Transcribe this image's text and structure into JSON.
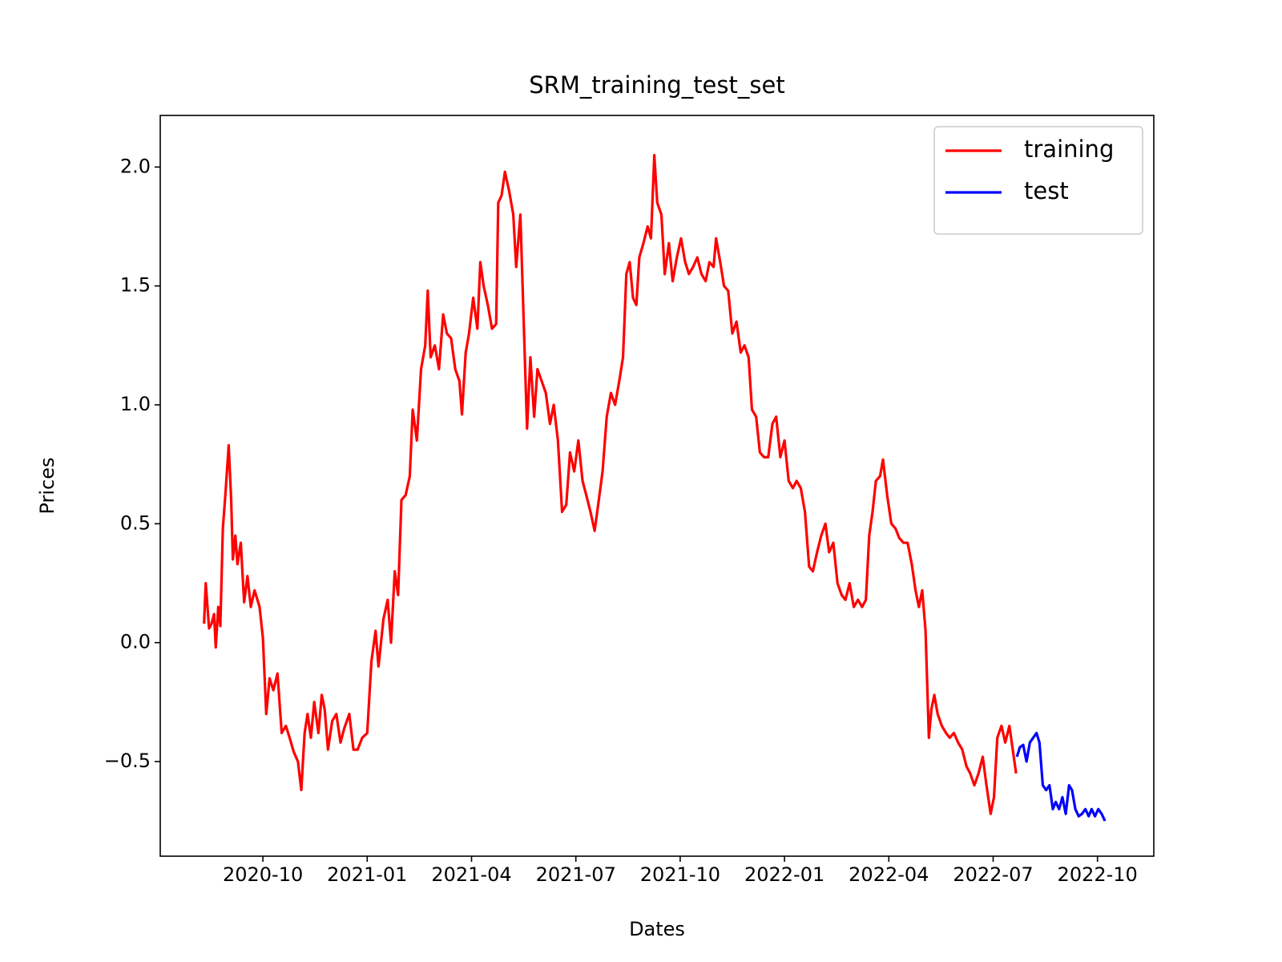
{
  "chart_data": {
    "type": "line",
    "title": "SRM_training_test_set",
    "x_label": "Dates",
    "y_label": "Prices",
    "xlim": [
      2020.504,
      2022.885
    ],
    "xticks": [
      {
        "value": 2020.75,
        "label": "2020-10"
      },
      {
        "value": 2021.0,
        "label": "2021-01"
      },
      {
        "value": 2021.25,
        "label": "2021-04"
      },
      {
        "value": 2021.5,
        "label": "2021-07"
      },
      {
        "value": 2021.75,
        "label": "2021-10"
      },
      {
        "value": 2022.0,
        "label": "2022-01"
      },
      {
        "value": 2022.25,
        "label": "2022-04"
      },
      {
        "value": 2022.5,
        "label": "2022-07"
      },
      {
        "value": 2022.75,
        "label": "2022-10"
      }
    ],
    "ylim": [
      -0.898,
      2.217
    ],
    "yticks": [
      {
        "value": -0.5,
        "label": "−0.5"
      },
      {
        "value": 0,
        "label": "0.0"
      },
      0.5,
      {
        "value": 1,
        "label": "1.0"
      },
      1.5,
      {
        "value": 2,
        "label": "2.0"
      }
    ],
    "grid": false,
    "legend": "upper right",
    "series": [
      {
        "name": "training",
        "color": "#ff0000",
        "x": [
          2020.609,
          2020.613,
          2020.621,
          2020.627,
          2020.633,
          2020.637,
          2020.643,
          2020.648,
          2020.654,
          2020.66,
          2020.668,
          2020.674,
          2020.678,
          2020.684,
          2020.689,
          2020.697,
          2020.705,
          2020.713,
          2020.721,
          2020.73,
          2020.742,
          2020.75,
          2020.758,
          2020.766,
          2020.775,
          2020.785,
          2020.795,
          2020.805,
          2020.814,
          2020.824,
          2020.834,
          2020.842,
          2020.85,
          2020.857,
          2020.865,
          2020.873,
          2020.883,
          2020.891,
          2020.898,
          2020.906,
          2020.916,
          2020.926,
          2020.936,
          2020.945,
          2020.957,
          2020.967,
          2020.977,
          2020.988,
          2021.0,
          2021.01,
          2021.02,
          2021.027,
          2021.039,
          2021.049,
          2021.057,
          2021.066,
          2021.074,
          2021.082,
          2021.092,
          2021.102,
          2021.109,
          2021.119,
          2021.129,
          2021.139,
          2021.145,
          2021.152,
          2021.162,
          2021.172,
          2021.182,
          2021.191,
          2021.201,
          2021.211,
          2021.221,
          2021.227,
          2021.236,
          2021.244,
          2021.254,
          2021.264,
          2021.271,
          2021.279,
          2021.289,
          2021.299,
          2021.309,
          2021.314,
          2021.322,
          2021.33,
          2021.34,
          2021.35,
          2021.357,
          2021.367,
          2021.375,
          2021.383,
          2021.391,
          2021.4,
          2021.408,
          2021.418,
          2021.428,
          2021.438,
          2021.447,
          2021.457,
          2021.467,
          2021.477,
          2021.486,
          2021.496,
          2021.506,
          2021.516,
          2021.525,
          2021.535,
          2021.545,
          2021.555,
          2021.564,
          2021.574,
          2021.584,
          2021.594,
          2021.604,
          2021.613,
          2021.621,
          2021.629,
          2021.637,
          2021.645,
          2021.652,
          2021.662,
          2021.672,
          2021.68,
          2021.688,
          2021.695,
          2021.705,
          2021.713,
          2021.723,
          2021.732,
          2021.742,
          2021.752,
          2021.762,
          2021.771,
          2021.781,
          2021.791,
          2021.801,
          2021.811,
          2021.82,
          2021.83,
          2021.836,
          2021.846,
          2021.855,
          2021.865,
          2021.875,
          2021.885,
          2021.895,
          2021.904,
          2021.914,
          2021.922,
          2021.932,
          2021.941,
          2021.951,
          2021.961,
          2021.971,
          2021.98,
          2021.99,
          2022.0,
          2022.01,
          2022.02,
          2022.029,
          2022.039,
          2022.049,
          2022.059,
          2022.068,
          2022.078,
          2022.088,
          2022.098,
          2022.107,
          2022.117,
          2022.127,
          2022.137,
          2022.146,
          2022.156,
          2022.166,
          2022.176,
          2022.186,
          2022.195,
          2022.203,
          2022.211,
          2022.219,
          2022.229,
          2022.236,
          2022.246,
          2022.256,
          2022.266,
          2022.275,
          2022.285,
          2022.295,
          2022.305,
          2022.314,
          2022.322,
          2022.33,
          2022.338,
          2022.346,
          2022.352,
          2022.359,
          2022.367,
          2022.377,
          2022.387,
          2022.396,
          2022.406,
          2022.416,
          2022.426,
          2022.436,
          2022.445,
          2022.455,
          2022.465,
          2022.475,
          2022.484,
          2022.494,
          2022.502,
          2022.51,
          2022.52,
          2022.529,
          2022.539,
          2022.547,
          2022.555
        ],
        "values": [
          0.08,
          0.25,
          0.06,
          0.08,
          0.12,
          -0.02,
          0.15,
          0.07,
          0.48,
          0.62,
          0.83,
          0.6,
          0.35,
          0.45,
          0.33,
          0.42,
          0.17,
          0.28,
          0.15,
          0.22,
          0.15,
          0.02,
          -0.3,
          -0.15,
          -0.2,
          -0.13,
          -0.38,
          -0.35,
          -0.4,
          -0.46,
          -0.5,
          -0.62,
          -0.38,
          -0.3,
          -0.4,
          -0.25,
          -0.38,
          -0.22,
          -0.28,
          -0.45,
          -0.33,
          -0.3,
          -0.42,
          -0.36,
          -0.3,
          -0.45,
          -0.45,
          -0.4,
          -0.38,
          -0.08,
          0.05,
          -0.1,
          0.1,
          0.18,
          0.0,
          0.3,
          0.2,
          0.6,
          0.62,
          0.7,
          0.98,
          0.85,
          1.15,
          1.25,
          1.48,
          1.2,
          1.25,
          1.15,
          1.38,
          1.3,
          1.28,
          1.15,
          1.1,
          0.96,
          1.22,
          1.3,
          1.45,
          1.32,
          1.6,
          1.5,
          1.42,
          1.32,
          1.34,
          1.85,
          1.88,
          1.98,
          1.9,
          1.8,
          1.58,
          1.8,
          1.35,
          0.9,
          1.2,
          0.95,
          1.15,
          1.1,
          1.05,
          0.92,
          1.0,
          0.85,
          0.55,
          0.58,
          0.8,
          0.72,
          0.85,
          0.68,
          0.62,
          0.55,
          0.47,
          0.6,
          0.72,
          0.95,
          1.05,
          1.0,
          1.1,
          1.2,
          1.55,
          1.6,
          1.45,
          1.42,
          1.62,
          1.68,
          1.75,
          1.7,
          2.05,
          1.85,
          1.8,
          1.55,
          1.68,
          1.52,
          1.62,
          1.7,
          1.6,
          1.55,
          1.58,
          1.62,
          1.55,
          1.52,
          1.6,
          1.58,
          1.7,
          1.6,
          1.5,
          1.48,
          1.3,
          1.35,
          1.22,
          1.25,
          1.2,
          0.98,
          0.95,
          0.8,
          0.78,
          0.78,
          0.92,
          0.95,
          0.78,
          0.85,
          0.68,
          0.65,
          0.68,
          0.65,
          0.55,
          0.32,
          0.3,
          0.38,
          0.45,
          0.5,
          0.38,
          0.42,
          0.25,
          0.2,
          0.18,
          0.25,
          0.15,
          0.18,
          0.15,
          0.18,
          0.45,
          0.55,
          0.68,
          0.7,
          0.77,
          0.62,
          0.5,
          0.48,
          0.44,
          0.42,
          0.42,
          0.33,
          0.22,
          0.15,
          0.22,
          0.05,
          -0.4,
          -0.28,
          -0.22,
          -0.3,
          -0.35,
          -0.38,
          -0.4,
          -0.38,
          -0.42,
          -0.45,
          -0.52,
          -0.55,
          -0.6,
          -0.55,
          -0.48,
          -0.6,
          -0.72,
          -0.65,
          -0.4,
          -0.35,
          -0.42,
          -0.35,
          -0.45,
          -0.55
        ]
      },
      {
        "name": "test",
        "color": "#0000ff",
        "x": [
          2022.557,
          2022.564,
          2022.572,
          2022.58,
          2022.588,
          2022.596,
          2022.604,
          2022.611,
          2022.619,
          2022.627,
          2022.635,
          2022.643,
          2022.65,
          2022.658,
          2022.666,
          2022.674,
          2022.682,
          2022.689,
          2022.697,
          2022.705,
          2022.713,
          2022.721,
          2022.729,
          2022.736,
          2022.744,
          2022.752,
          2022.76,
          2022.768
        ],
        "values": [
          -0.48,
          -0.44,
          -0.43,
          -0.5,
          -0.42,
          -0.4,
          -0.38,
          -0.42,
          -0.6,
          -0.62,
          -0.6,
          -0.7,
          -0.67,
          -0.7,
          -0.65,
          -0.72,
          -0.6,
          -0.62,
          -0.7,
          -0.73,
          -0.72,
          -0.7,
          -0.73,
          -0.7,
          -0.73,
          -0.7,
          -0.72,
          -0.75
        ]
      }
    ]
  }
}
